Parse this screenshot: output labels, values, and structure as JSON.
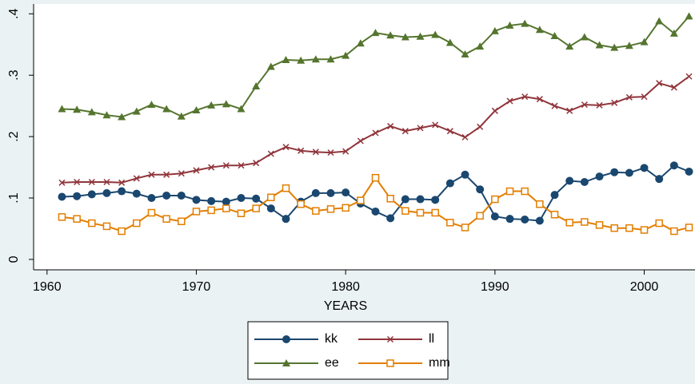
{
  "chart_data": {
    "type": "line",
    "x_label": "YEARS",
    "x": [
      1961,
      1962,
      1963,
      1964,
      1965,
      1966,
      1967,
      1968,
      1969,
      1970,
      1971,
      1972,
      1973,
      1974,
      1975,
      1976,
      1977,
      1978,
      1979,
      1980,
      1981,
      1982,
      1983,
      1984,
      1985,
      1986,
      1987,
      1988,
      1989,
      1990,
      1991,
      1992,
      1993,
      1994,
      1995,
      1996,
      1997,
      1998,
      1999,
      2000,
      2001,
      2002,
      2003
    ],
    "xlim": [
      1959.1,
      2003.4
    ],
    "xticks": [
      1960,
      1970,
      1980,
      1990,
      2000
    ],
    "ylim": [
      -0.017,
      0.416
    ],
    "yticks": [
      0,
      {
        "value": 0.1,
        "label": ".1"
      },
      {
        "value": 0.2,
        "label": ".2"
      },
      {
        "value": 0.3,
        "label": ".3"
      },
      {
        "value": 0.4,
        "label": ".4"
      }
    ],
    "legend": "bottom",
    "series": [
      {
        "name": "kk",
        "color": "#1a476f",
        "marker": "circle",
        "values": [
          0.102,
          0.103,
          0.106,
          0.108,
          0.111,
          0.107,
          0.1,
          0.104,
          0.104,
          0.097,
          0.095,
          0.094,
          0.1,
          0.099,
          0.083,
          0.066,
          0.094,
          0.108,
          0.108,
          0.109,
          0.091,
          0.078,
          0.067,
          0.098,
          0.098,
          0.097,
          0.124,
          0.138,
          0.114,
          0.07,
          0.066,
          0.065,
          0.063,
          0.105,
          0.128,
          0.126,
          0.135,
          0.142,
          0.141,
          0.149,
          0.131,
          0.153,
          0.143
        ]
      },
      {
        "name": "ll",
        "color": "#90353b",
        "marker": "x",
        "values": [
          0.125,
          0.126,
          0.126,
          0.126,
          0.125,
          0.132,
          0.138,
          0.138,
          0.14,
          0.145,
          0.15,
          0.153,
          0.153,
          0.157,
          0.172,
          0.183,
          0.177,
          0.175,
          0.174,
          0.176,
          0.193,
          0.206,
          0.217,
          0.209,
          0.214,
          0.219,
          0.209,
          0.199,
          0.216,
          0.242,
          0.258,
          0.265,
          0.261,
          0.25,
          0.242,
          0.252,
          0.251,
          0.255,
          0.264,
          0.265,
          0.287,
          0.28,
          0.298
        ]
      },
      {
        "name": "ee",
        "color": "#55752f",
        "marker": "triangle",
        "values": [
          0.245,
          0.244,
          0.24,
          0.235,
          0.232,
          0.241,
          0.252,
          0.245,
          0.233,
          0.243,
          0.251,
          0.253,
          0.245,
          0.282,
          0.314,
          0.325,
          0.324,
          0.326,
          0.326,
          0.332,
          0.352,
          0.369,
          0.365,
          0.362,
          0.363,
          0.366,
          0.353,
          0.334,
          0.347,
          0.372,
          0.381,
          0.384,
          0.374,
          0.364,
          0.347,
          0.362,
          0.349,
          0.345,
          0.348,
          0.354,
          0.388,
          0.368,
          0.396
        ]
      },
      {
        "name": "mm",
        "color": "#e37e00",
        "marker": "square",
        "values": [
          0.069,
          0.066,
          0.059,
          0.054,
          0.046,
          0.059,
          0.076,
          0.066,
          0.062,
          0.078,
          0.08,
          0.083,
          0.075,
          0.083,
          0.101,
          0.116,
          0.09,
          0.079,
          0.082,
          0.084,
          0.096,
          0.133,
          0.099,
          0.079,
          0.076,
          0.076,
          0.06,
          0.052,
          0.071,
          0.098,
          0.111,
          0.111,
          0.09,
          0.073,
          0.06,
          0.061,
          0.056,
          0.051,
          0.051,
          0.048,
          0.059,
          0.046,
          0.052
        ]
      }
    ]
  }
}
